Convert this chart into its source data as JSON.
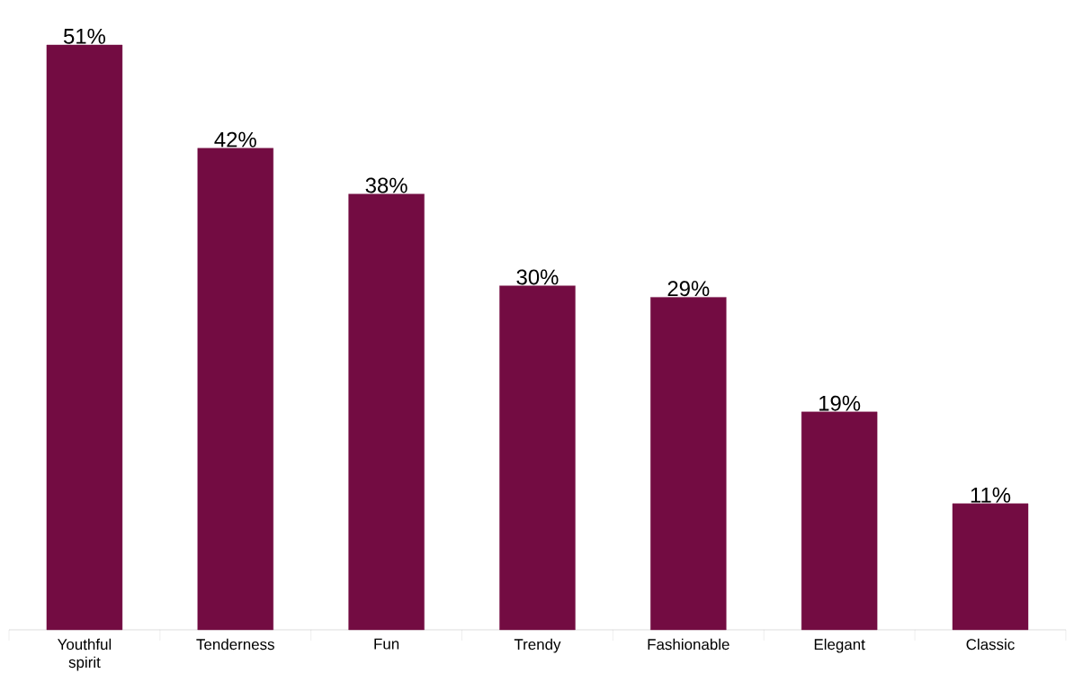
{
  "chart_data": {
    "type": "bar",
    "categories": [
      "Youthful spirit",
      "Tenderness",
      "Fun",
      "Trendy",
      "Fashionable",
      "Elegant",
      "Classic"
    ],
    "values": [
      51,
      42,
      38,
      30,
      29,
      19,
      11
    ],
    "value_labels": [
      "51%",
      "42%",
      "38%",
      "30%",
      "29%",
      "19%",
      "11%"
    ],
    "color": "#730c42"
  }
}
